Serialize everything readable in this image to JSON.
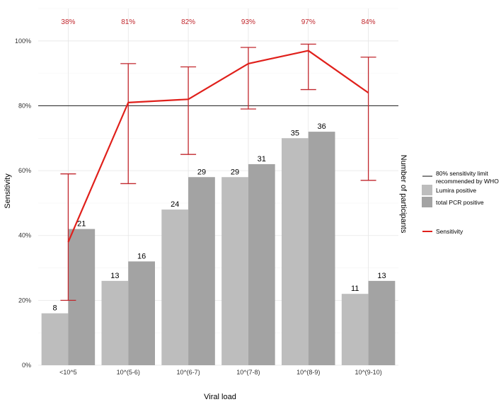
{
  "chart_data": {
    "type": "bar",
    "categories": [
      "<10^5",
      "10^(5-6)",
      "10^(6-7)",
      "10^(7-8)",
      "10^(8-9)",
      "10^(9-10)"
    ],
    "series": [
      {
        "name": "Lumira positive",
        "values": [
          8,
          13,
          24,
          29,
          35,
          11
        ],
        "labels": [
          "8",
          "13",
          "24",
          "29",
          "35",
          "11"
        ],
        "color": "#BDBDBD"
      },
      {
        "name": "total PCR positive",
        "values": [
          21,
          16,
          29,
          31,
          36,
          13
        ],
        "labels": [
          "21",
          "16",
          "29",
          "31",
          "36",
          "13"
        ],
        "color": "#A3A3A3"
      }
    ],
    "sensitivity": {
      "name": "Sensitivity",
      "values": [
        38,
        81,
        82,
        93,
        97,
        84
      ],
      "lower": [
        20,
        56,
        65,
        79,
        85,
        57
      ],
      "upper": [
        59,
        93,
        92,
        98,
        99,
        95
      ],
      "labels": [
        "38%",
        "81%",
        "82%",
        "93%",
        "97%",
        "84%"
      ],
      "color": "#E0201B",
      "label_color": "#C1272D"
    },
    "reference_line": {
      "value": 80,
      "label_line1": "80% sensitivity limit",
      "label_line2": "recommended by WHO",
      "color": "#333333"
    },
    "xlabel": "Viral load",
    "ylabel": "Sensitivity",
    "y2label": "Number of participants",
    "ylim": [
      0,
      110
    ],
    "y_ticks": [
      0,
      20,
      40,
      60,
      80,
      100
    ],
    "y_tick_labels": [
      "0%",
      "20%",
      "40%",
      "60%",
      "80%",
      "100%"
    ],
    "grid": true,
    "legend_position": "right"
  }
}
